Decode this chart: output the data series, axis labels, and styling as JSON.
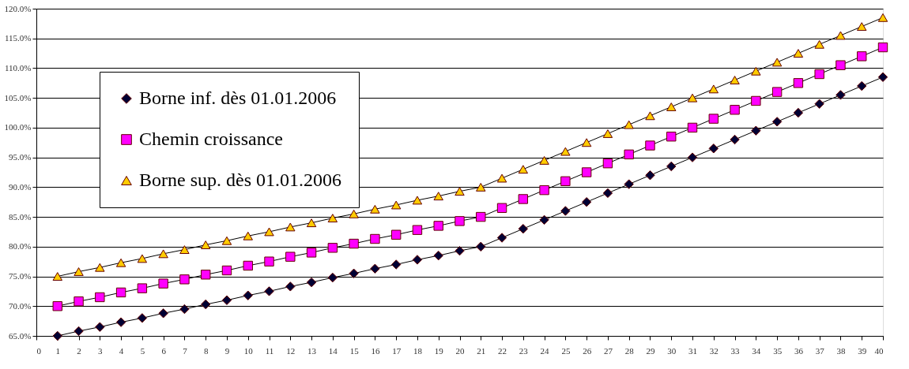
{
  "chart_data": {
    "type": "line",
    "x": [
      1,
      2,
      3,
      4,
      5,
      6,
      7,
      8,
      9,
      10,
      11,
      12,
      13,
      14,
      15,
      16,
      17,
      18,
      19,
      20,
      21,
      22,
      23,
      24,
      25,
      26,
      27,
      28,
      29,
      30,
      31,
      32,
      33,
      34,
      35,
      36,
      37,
      38,
      39,
      40
    ],
    "series": [
      {
        "name": "Borne inf. dès 01.01.2006",
        "color": "#000033",
        "marker": "diamond",
        "values": [
          65.0,
          65.8,
          66.5,
          67.3,
          68.0,
          68.8,
          69.5,
          70.3,
          71.0,
          71.8,
          72.5,
          73.3,
          74.0,
          74.8,
          75.5,
          76.3,
          77.0,
          77.8,
          78.5,
          79.3,
          80.0,
          81.5,
          83.0,
          84.5,
          86.0,
          87.5,
          89.0,
          90.5,
          92.0,
          93.5,
          95.0,
          96.5,
          98.0,
          99.5,
          101.0,
          102.5,
          104.0,
          105.5,
          107.0,
          108.5
        ]
      },
      {
        "name": "Chemin croissance",
        "color": "#ff00ff",
        "marker": "square",
        "values": [
          70.0,
          70.8,
          71.5,
          72.3,
          73.0,
          73.8,
          74.5,
          75.3,
          76.0,
          76.8,
          77.5,
          78.3,
          79.0,
          79.8,
          80.5,
          81.3,
          82.0,
          82.8,
          83.5,
          84.3,
          85.0,
          86.5,
          88.0,
          89.5,
          91.0,
          92.5,
          94.0,
          95.5,
          97.0,
          98.5,
          100.0,
          101.5,
          103.0,
          104.5,
          106.0,
          107.5,
          109.0,
          110.5,
          112.0,
          113.5
        ]
      },
      {
        "name": "Borne sup. dès 01.01.2006",
        "color": "#ffcc00",
        "marker": "triangle",
        "values": [
          75.0,
          75.8,
          76.5,
          77.3,
          78.0,
          78.8,
          79.5,
          80.3,
          81.0,
          81.8,
          82.5,
          83.3,
          84.0,
          84.8,
          85.5,
          86.3,
          87.0,
          87.8,
          88.5,
          89.3,
          90.0,
          91.5,
          93.0,
          94.5,
          96.0,
          97.5,
          99.0,
          100.5,
          102.0,
          103.5,
          105.0,
          106.5,
          108.0,
          109.5,
          111.0,
          112.5,
          114.0,
          115.5,
          117.0,
          118.5
        ]
      }
    ],
    "xlim": [
      0,
      40
    ],
    "xticks": [
      0,
      1,
      2,
      3,
      4,
      5,
      6,
      7,
      8,
      9,
      10,
      11,
      12,
      13,
      14,
      15,
      16,
      17,
      18,
      19,
      20,
      21,
      22,
      23,
      24,
      25,
      26,
      27,
      28,
      29,
      30,
      31,
      32,
      33,
      34,
      35,
      36,
      37,
      38,
      39,
      40
    ],
    "ylim": [
      65,
      120
    ],
    "yticks": [
      {
        "value": 65,
        "label": "65.0%"
      },
      {
        "value": 70,
        "label": "70.0%"
      },
      {
        "value": 75,
        "label": "75.0%"
      },
      {
        "value": 80,
        "label": "80.0%"
      },
      {
        "value": 85,
        "label": "85.0%"
      },
      {
        "value": 90,
        "label": "90.0%"
      },
      {
        "value": 95,
        "label": "95.0%"
      },
      {
        "value": 100,
        "label": "100.0%"
      },
      {
        "value": 105,
        "label": "105.0%"
      },
      {
        "value": 110,
        "label": "110.0%"
      },
      {
        "value": 115,
        "label": "115.0%"
      },
      {
        "value": 120,
        "label": "120.0%"
      }
    ],
    "grid": "y",
    "legend": "top left",
    "line_style": "solid"
  }
}
